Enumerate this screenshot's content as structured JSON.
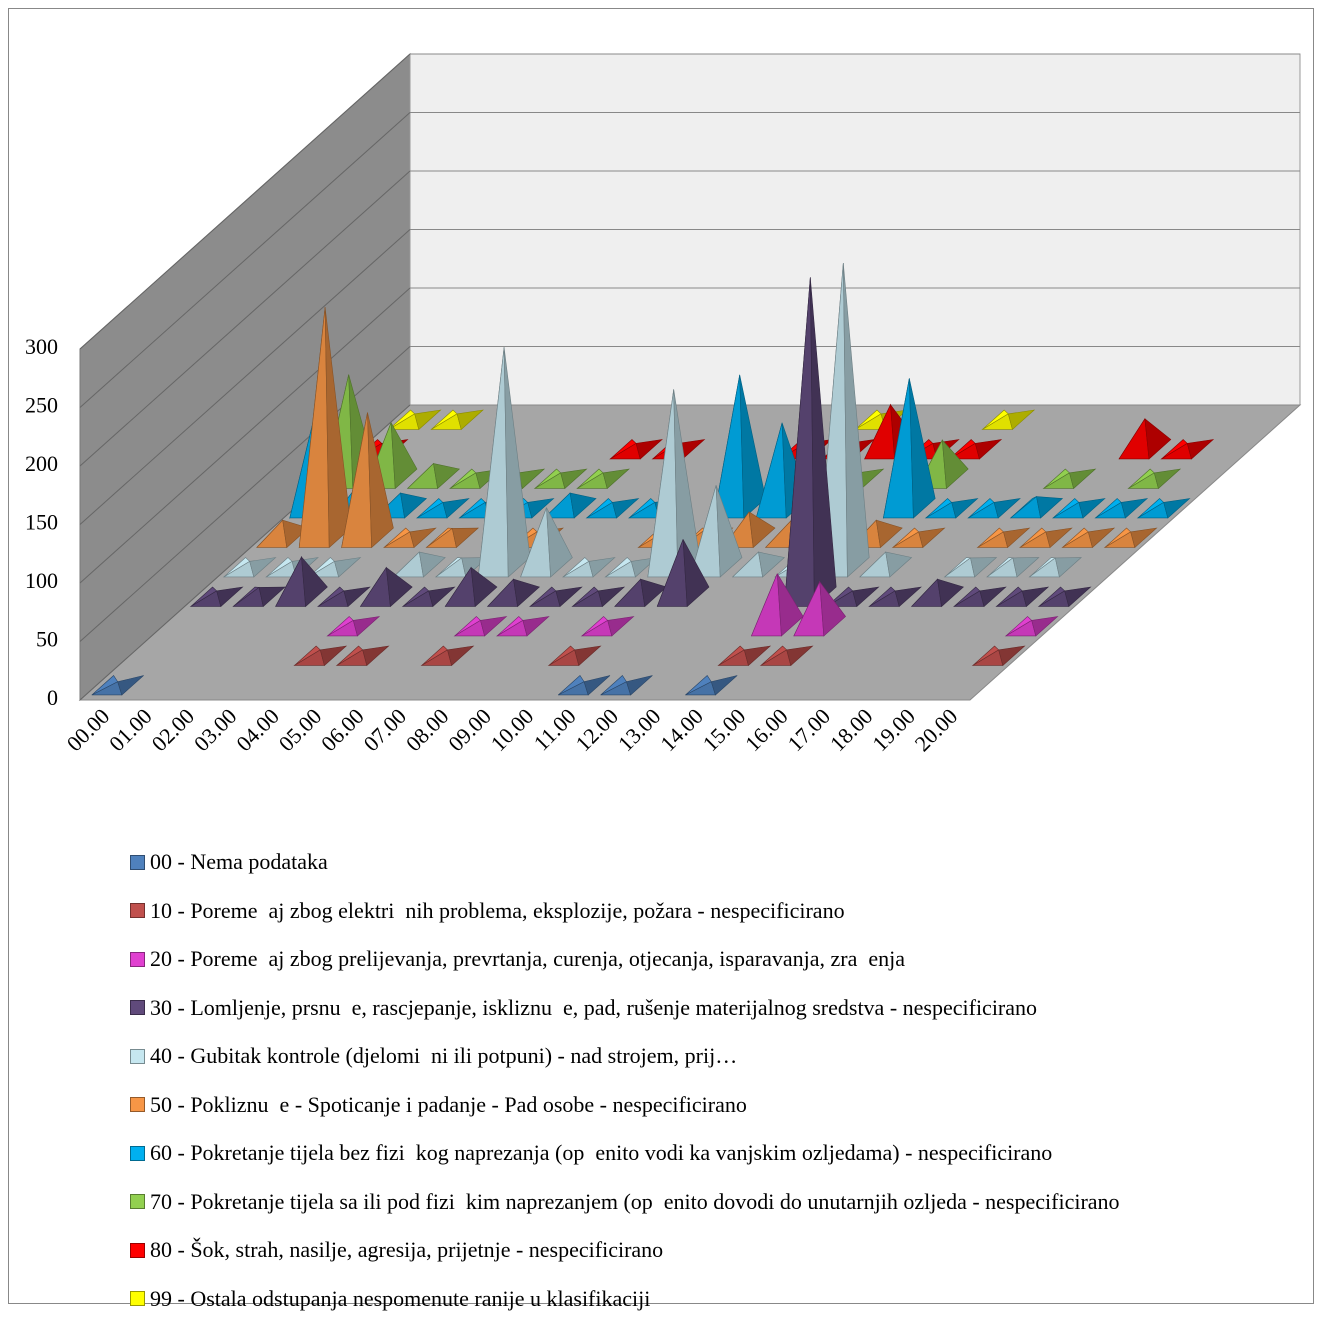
{
  "chart_data": {
    "type": "pyramid",
    "categories": [
      "00.00",
      "01.00",
      "02.00",
      "03.00",
      "04.00",
      "05.00",
      "06.00",
      "07.00",
      "08.00",
      "09.00",
      "10.00",
      "11.00",
      "12.00",
      "13.00",
      "14.00",
      "15.00",
      "16.00",
      "17.00",
      "18.00",
      "19.00",
      "20.00"
    ],
    "ylim": [
      0,
      300
    ],
    "yticks": [
      0,
      50,
      100,
      150,
      200,
      250,
      300
    ],
    "grid": true,
    "series": [
      {
        "name": "00 - Nema podataka",
        "color": "#4f81bd",
        "values": [
          3,
          null,
          null,
          null,
          null,
          null,
          null,
          null,
          null,
          null,
          null,
          3,
          3,
          null,
          3,
          null,
          null,
          null,
          null,
          null,
          null
        ]
      },
      {
        "name": "10 - Poreme  aj zbog elektri  nih problema, eksplozije, požara - nespecificirano",
        "color": "#c0504d",
        "values": [
          null,
          null,
          null,
          null,
          5,
          5,
          null,
          5,
          null,
          null,
          5,
          null,
          null,
          null,
          5,
          5,
          null,
          null,
          null,
          null,
          5
        ]
      },
      {
        "name": "20 - Poreme  aj zbog prelijevanja, prevrtanja, curenja, otjecanja, isparavanja, zra  enja",
        "color": "#e040d0",
        "values": [
          null,
          null,
          null,
          null,
          5,
          null,
          null,
          5,
          5,
          null,
          5,
          null,
          null,
          null,
          45,
          38,
          null,
          null,
          null,
          null,
          5
        ]
      },
      {
        "name": "30 - Lomljenje, prsnu  e, rascjepanje, iskliznu  e, pad, rušenje materijalnog sredstva - nespecificirano",
        "color": "#604a7b",
        "values": [
          5,
          8,
          34,
          5,
          25,
          5,
          25,
          15,
          5,
          5,
          15,
          49,
          null,
          null,
          273,
          5,
          5,
          15,
          5,
          5,
          5
        ]
      },
      {
        "name": "40 - Gubitak kontrole (djelomi  ni ili potpuni) - nad strojem, prij…",
        "color": "#c6e7f0",
        "values": [
          5,
          5,
          5,
          null,
          13,
          8,
          188,
          51,
          5,
          5,
          152,
          70,
          13,
          5,
          260,
          13,
          null,
          8,
          8,
          8,
          null
        ]
      },
      {
        "name": "50 - Pokliznu  e - Spoticanje i padanje - Pad osobe - nespecificirano",
        "color": "#f79646",
        "values": [
          15,
          197,
          107,
          5,
          8,
          null,
          5,
          null,
          null,
          5,
          8,
          22,
          15,
          5,
          15,
          5,
          null,
          5,
          5,
          5,
          5
        ]
      },
      {
        "name": "60 - Pokretanje tijela bez fizi  kog naprezanja (op  enito vodi ka vanjskim ozljedama) - nespecificirano",
        "color": "#00b0f0",
        "values": [
          83,
          20,
          13,
          5,
          5,
          5,
          13,
          5,
          5,
          null,
          114,
          73,
          5,
          null,
          111,
          5,
          5,
          10,
          5,
          5,
          5
        ]
      },
      {
        "name": "70 - Pokretanje tijela sa ili pod fizi  kim naprezanjem (op  enito dovodi do unutarnjih ozljeda - nespecificirano",
        "color": "#92d050",
        "values": [
          89,
          48,
          13,
          5,
          5,
          5,
          5,
          null,
          null,
          null,
          null,
          5,
          5,
          null,
          33,
          null,
          null,
          5,
          null,
          5,
          null
        ]
      },
      {
        "name": "80 - Šok, strah, nasilje, agresija, prijetnje - nespecificirano",
        "color": "#ff0000",
        "values": [
          5,
          null,
          null,
          null,
          null,
          null,
          5,
          5,
          null,
          null,
          5,
          5,
          38,
          5,
          5,
          null,
          null,
          null,
          26,
          5,
          null
        ]
      },
      {
        "name": "99 - Ostala odstupanja nespomenute ranije u klasifikaciji",
        "color": "#ffff00",
        "values": [
          5,
          5,
          null,
          null,
          null,
          null,
          null,
          null,
          null,
          null,
          null,
          5,
          null,
          null,
          5,
          null,
          null,
          null,
          null,
          null,
          null
        ]
      }
    ]
  }
}
